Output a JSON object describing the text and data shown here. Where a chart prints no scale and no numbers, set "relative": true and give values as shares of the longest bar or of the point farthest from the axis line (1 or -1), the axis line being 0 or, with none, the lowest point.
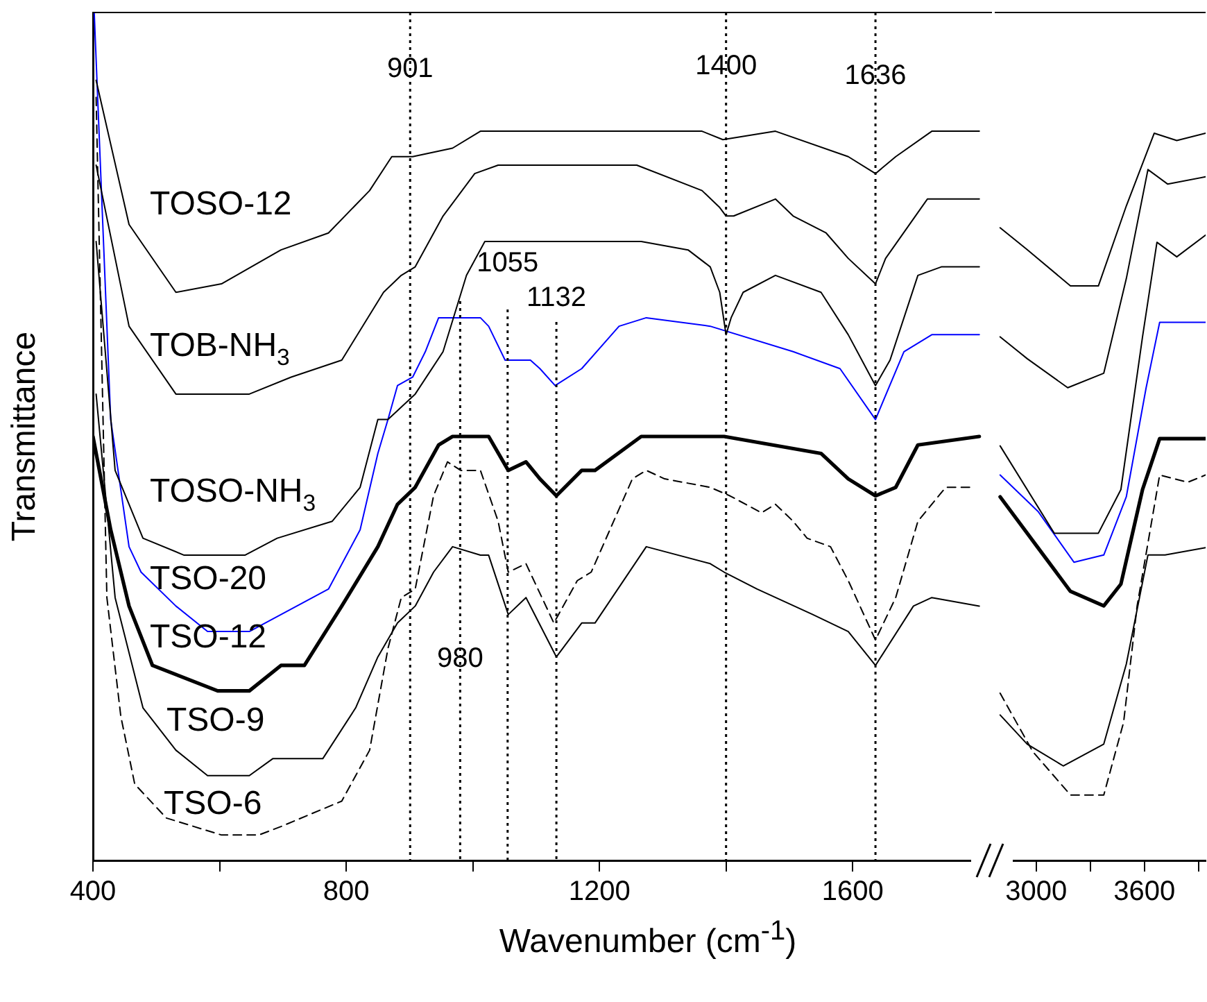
{
  "chart_data": [
    {
      "type": "line",
      "xlabel": "Wavenumber (cm$^{-1}$)",
      "ylabel": "Transmittance",
      "relative": true,
      "marker": "none",
      "xlim": [
        400,
        1820
      ],
      "xticks": [
        400,
        {
          "value": 600,
          "label": null
        },
        800,
        {
          "value": 1000,
          "label": null
        },
        1200,
        {
          "value": 1400,
          "label": null
        },
        1600,
        {
          "value": 1800,
          "label": null
        }
      ],
      "ref_lines": [
        {
          "axis": "x",
          "value": 901,
          "label": "901",
          "color": "#000000",
          "line_style": "dotted"
        },
        {
          "axis": "x",
          "value": 980,
          "label": "980",
          "color": "#000000",
          "line_style": "dotted"
        },
        {
          "axis": "x",
          "value": 1055,
          "label": "1055",
          "color": "#000000",
          "line_style": "dotted"
        },
        {
          "axis": "x",
          "value": 1132,
          "label": "1132",
          "color": "#000000",
          "line_style": "dotted"
        },
        {
          "axis": "x",
          "value": 1400,
          "label": "1400",
          "color": "#000000",
          "line_style": "dotted"
        },
        {
          "axis": "x",
          "value": 1636,
          "label": "1636",
          "color": "#000000",
          "line_style": "dotted"
        }
      ],
      "series": [
        {
          "name": "TOSO-12",
          "color": "#000000",
          "x": [
            405,
            457,
            531,
            603,
            697,
            772,
            837,
            872,
            905,
            968,
            1012,
            1106,
            1362,
            1395,
            1478,
            1593,
            1636,
            1668,
            1725,
            1800
          ],
          "values": [
            0.92,
            0.75,
            0.67,
            0.68,
            0.72,
            0.74,
            0.79,
            0.83,
            0.83,
            0.84,
            0.86,
            0.86,
            0.86,
            0.85,
            0.86,
            0.83,
            0.81,
            0.83,
            0.86,
            0.86
          ]
        },
        {
          "name": "TOB-NH$_{3}$",
          "color": "#000000",
          "x": [
            405,
            457,
            531,
            647,
            713,
            793,
            859,
            887,
            909,
            953,
            1003,
            1040,
            1106,
            1259,
            1362,
            1390,
            1400,
            1412,
            1478,
            1506,
            1558,
            1593,
            1636,
            1652,
            1718,
            1800
          ],
          "values": [
            0.82,
            0.63,
            0.55,
            0.55,
            0.57,
            0.59,
            0.67,
            0.69,
            0.7,
            0.76,
            0.81,
            0.82,
            0.82,
            0.82,
            0.79,
            0.77,
            0.76,
            0.76,
            0.78,
            0.76,
            0.74,
            0.71,
            0.68,
            0.71,
            0.78,
            0.78
          ]
        },
        {
          "name": "TOSO-NH$_{3}$",
          "color": "#000000",
          "x": [
            405,
            435,
            479,
            544,
            640,
            691,
            778,
            822,
            850,
            866,
            909,
            953,
            990,
            1019,
            1040,
            1106,
            1266,
            1340,
            1375,
            1390,
            1400,
            1408,
            1427,
            1478,
            1550,
            1593,
            1636,
            1659,
            1703,
            1740,
            1800
          ],
          "values": [
            0.73,
            0.46,
            0.38,
            0.36,
            0.36,
            0.38,
            0.4,
            0.44,
            0.52,
            0.52,
            0.55,
            0.6,
            0.69,
            0.73,
            0.73,
            0.73,
            0.73,
            0.72,
            0.7,
            0.67,
            0.62,
            0.64,
            0.67,
            0.69,
            0.67,
            0.62,
            0.56,
            0.59,
            0.69,
            0.7,
            0.7
          ]
        },
        {
          "name": "TSO-20",
          "color": "#0000ff",
          "x": [
            402,
            428,
            457,
            476,
            531,
            581,
            647,
            697,
            772,
            822,
            850,
            866,
            881,
            905,
            925,
            946,
            968,
            1012,
            1025,
            1051,
            1078,
            1091,
            1106,
            1130,
            1172,
            1231,
            1274,
            1375,
            1506,
            1580,
            1636,
            1681,
            1725,
            1800
          ],
          "values": [
            1.0,
            0.52,
            0.37,
            0.34,
            0.3,
            0.27,
            0.27,
            0.29,
            0.32,
            0.39,
            0.48,
            0.52,
            0.56,
            0.57,
            0.6,
            0.64,
            0.64,
            0.64,
            0.63,
            0.59,
            0.59,
            0.59,
            0.58,
            0.56,
            0.58,
            0.63,
            0.64,
            0.63,
            0.6,
            0.58,
            0.52,
            0.6,
            0.62,
            0.62
          ]
        },
        {
          "name": "TSO-12",
          "color": "#000000",
          "x": [
            400,
            428,
            457,
            494,
            597,
            647,
            697,
            734,
            793,
            850,
            881,
            909,
            946,
            968,
            1012,
            1025,
            1056,
            1084,
            1106,
            1132,
            1172,
            1193,
            1266,
            1397,
            1550,
            1593,
            1636,
            1668,
            1703,
            1800
          ],
          "values": [
            0.5,
            0.39,
            0.3,
            0.23,
            0.2,
            0.2,
            0.23,
            0.23,
            0.3,
            0.37,
            0.42,
            0.44,
            0.49,
            0.5,
            0.5,
            0.5,
            0.46,
            0.47,
            0.45,
            0.43,
            0.46,
            0.46,
            0.5,
            0.5,
            0.48,
            0.45,
            0.43,
            0.44,
            0.49,
            0.5
          ]
        },
        {
          "name": "TSO-9",
          "color": "#000000",
          "x": [
            405,
            435,
            479,
            531,
            581,
            647,
            684,
            719,
            763,
            815,
            850,
            881,
            909,
            938,
            968,
            1012,
            1025,
            1056,
            1084,
            1132,
            1172,
            1193,
            1274,
            1375,
            1397,
            1449,
            1537,
            1593,
            1636,
            1696,
            1725,
            1800
          ],
          "values": [
            0.55,
            0.31,
            0.18,
            0.13,
            0.1,
            0.1,
            0.12,
            0.12,
            0.12,
            0.18,
            0.24,
            0.28,
            0.3,
            0.34,
            0.37,
            0.36,
            0.36,
            0.29,
            0.31,
            0.24,
            0.28,
            0.28,
            0.37,
            0.35,
            0.34,
            0.32,
            0.29,
            0.27,
            0.23,
            0.3,
            0.31,
            0.3
          ]
        },
        {
          "name": "TSO-6",
          "color": "#000000",
          "line_style": "dashed",
          "x": [
            405,
            422,
            444,
            466,
            516,
            603,
            662,
            697,
            793,
            837,
            866,
            887,
            909,
            938,
            960,
            981,
            1012,
            1040,
            1056,
            1084,
            1128,
            1165,
            1187,
            1252,
            1274,
            1303,
            1375,
            1406,
            1456,
            1478,
            1506,
            1528,
            1565,
            1593,
            1636,
            1668,
            1703,
            1747,
            1790
          ],
          "values": [
            0.9,
            0.31,
            0.17,
            0.09,
            0.05,
            0.03,
            0.03,
            0.04,
            0.07,
            0.13,
            0.25,
            0.31,
            0.32,
            0.43,
            0.47,
            0.46,
            0.46,
            0.4,
            0.34,
            0.35,
            0.28,
            0.33,
            0.34,
            0.45,
            0.46,
            0.45,
            0.44,
            0.43,
            0.41,
            0.42,
            0.4,
            0.38,
            0.37,
            0.33,
            0.26,
            0.31,
            0.4,
            0.44,
            0.44
          ]
        }
      ]
    },
    {
      "type": "line",
      "relative": true,
      "marker": "none",
      "xlim": [
        2770,
        3940
      ],
      "xticks": [
        3000,
        {
          "value": 3300,
          "label": null
        },
        3600,
        {
          "value": 3900,
          "label": null
        }
      ],
      "series": [
        {
          "color": "#000000",
          "x": [
            2800,
            2950,
            3190,
            3345,
            3500,
            3655,
            3780,
            3940
          ],
          "values": [
            0.87,
            0.84,
            0.79,
            0.79,
            0.9,
            1.0,
            0.99,
            1.0
          ]
        },
        {
          "color": "#000000",
          "x": [
            2800,
            2950,
            3175,
            3375,
            3500,
            3620,
            3730,
            3940
          ],
          "values": [
            0.72,
            0.69,
            0.65,
            0.67,
            0.8,
            0.95,
            0.93,
            0.94
          ]
        },
        {
          "color": "#000000",
          "x": [
            2800,
            3100,
            3345,
            3470,
            3590,
            3670,
            3780,
            3940
          ],
          "values": [
            0.57,
            0.45,
            0.45,
            0.51,
            0.72,
            0.85,
            0.83,
            0.86
          ]
        },
        {
          "color": "#0000ff",
          "x": [
            2800,
            3010,
            3210,
            3375,
            3500,
            3610,
            3685,
            3940
          ],
          "values": [
            0.53,
            0.48,
            0.41,
            0.42,
            0.5,
            0.65,
            0.74,
            0.74
          ]
        },
        {
          "color": "#000000",
          "x": [
            2800,
            3010,
            3190,
            3375,
            3470,
            3590,
            3685,
            3940
          ],
          "values": [
            0.5,
            0.43,
            0.37,
            0.35,
            0.38,
            0.51,
            0.58,
            0.58
          ]
        },
        {
          "color": "#000000",
          "x": [
            2800,
            2950,
            3150,
            3375,
            3500,
            3620,
            3715,
            3940
          ],
          "values": [
            0.2,
            0.16,
            0.13,
            0.16,
            0.27,
            0.42,
            0.42,
            0.43
          ]
        },
        {
          "color": "#000000",
          "line_style": "dashed",
          "x": [
            2800,
            2980,
            3190,
            3375,
            3485,
            3560,
            3685,
            3840,
            3940
          ],
          "values": [
            0.23,
            0.15,
            0.09,
            0.09,
            0.19,
            0.35,
            0.53,
            0.52,
            0.53
          ]
        }
      ]
    }
  ]
}
